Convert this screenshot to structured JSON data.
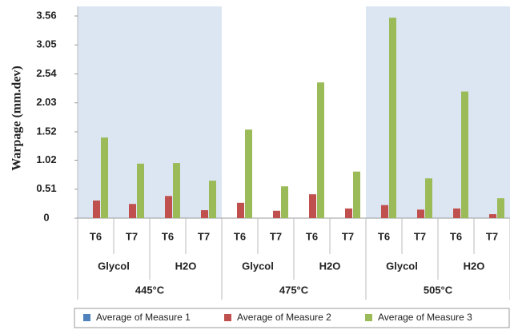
{
  "chart_data": {
    "type": "bar",
    "y_label": "Warpage (mm.dev)",
    "categories": [
      "T6",
      "T7",
      "T6",
      "T7",
      "T6",
      "T7",
      "T6",
      "T7",
      "T6",
      "T7",
      "T6",
      "T7"
    ],
    "category_groups": [
      "Glycol",
      "H2O",
      "Glycol",
      "H2O",
      "Glycol",
      "H2O"
    ],
    "category_supergroups": [
      "445°C",
      "475°C",
      "505°C"
    ],
    "series": [
      {
        "name": "Average of Measure 1",
        "color": "#4f81bd",
        "values": [
          0,
          0,
          0,
          0,
          0,
          0,
          0,
          0,
          0,
          0,
          0,
          0
        ]
      },
      {
        "name": "Average of Measure 2",
        "color": "#c0504d",
        "values": [
          0.31,
          0.25,
          0.39,
          0.14,
          0.27,
          0.13,
          0.42,
          0.17,
          0.23,
          0.15,
          0.17,
          0.07
        ]
      },
      {
        "name": "Average of Measure 3",
        "color": "#9bbb59",
        "values": [
          1.42,
          0.96,
          0.97,
          0.66,
          1.56,
          0.56,
          2.39,
          0.82,
          3.53,
          0.7,
          2.23,
          0.35
        ]
      }
    ],
    "ylim": [
      0,
      3.56
    ],
    "yticks": [
      0,
      0.51,
      1.02,
      1.52,
      2.03,
      2.54,
      3.05,
      3.56
    ],
    "grid": false,
    "legend": "bottom"
  }
}
